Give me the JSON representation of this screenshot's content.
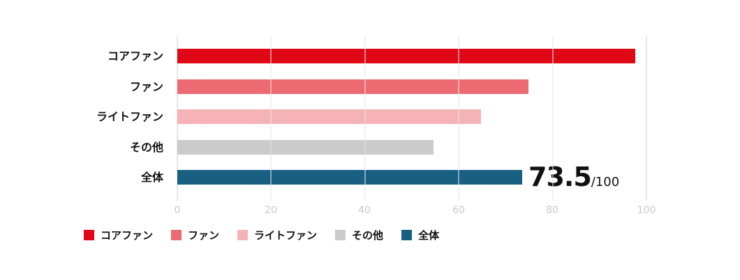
{
  "chart_data": {
    "type": "bar",
    "orientation": "horizontal",
    "title": "",
    "xlabel": "",
    "ylabel": "",
    "xlim": [
      0,
      100
    ],
    "x_ticks": [
      "0",
      "20",
      "40",
      "60",
      "80",
      "100"
    ],
    "grid": true,
    "legend_position": "bottom",
    "categories": [
      "コアファン",
      "ファン",
      "ライトファン",
      "その他",
      "全体"
    ],
    "values": [
      97.6,
      74.8,
      64.7,
      54.6,
      73.5
    ],
    "colors": [
      "#e00717",
      "#ec6b73",
      "#f5b3b7",
      "#cbcbcb",
      "#195f82"
    ],
    "annotation": {
      "value": "73.5",
      "suffix": "/100"
    }
  },
  "legend": [
    {
      "label": "コアファン",
      "color": "#e00717"
    },
    {
      "label": "ファン",
      "color": "#ec6b73"
    },
    {
      "label": "ライトファン",
      "color": "#f5b3b7"
    },
    {
      "label": "その他",
      "color": "#cbcbcb"
    },
    {
      "label": "全体",
      "color": "#195f82"
    }
  ]
}
